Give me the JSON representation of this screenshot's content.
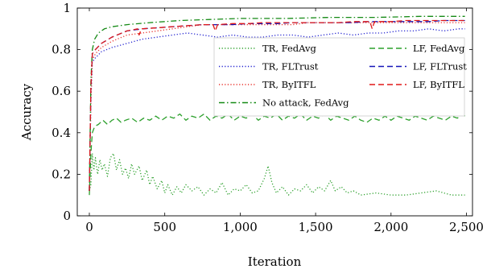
{
  "chart_data": {
    "type": "line",
    "xlabel": "Iteration",
    "ylabel": "Accuracy",
    "xlim": [
      -80,
      2540
    ],
    "ylim": [
      0,
      1
    ],
    "x_ticks": [
      0,
      500,
      1000,
      1500,
      2000,
      2500
    ],
    "x_tick_labels": [
      "0",
      "500",
      "1,000",
      "1,500",
      "2,000",
      "2,500"
    ],
    "y_ticks": [
      0,
      0.2,
      0.4,
      0.6,
      0.8,
      1
    ],
    "y_tick_labels": [
      "0",
      "0.2",
      "0.4",
      "0.6",
      "0.8",
      "1"
    ],
    "grid": false,
    "legend_position": "center-right",
    "series": [
      {
        "name": "TR, FedAvg",
        "color": "#2ca02c",
        "style": "dotted",
        "points": [
          [
            0,
            0.12
          ],
          [
            10,
            0.15
          ],
          [
            20,
            0.3
          ],
          [
            30,
            0.22
          ],
          [
            40,
            0.28
          ],
          [
            55,
            0.2
          ],
          [
            70,
            0.27
          ],
          [
            85,
            0.22
          ],
          [
            100,
            0.25
          ],
          [
            120,
            0.19
          ],
          [
            140,
            0.28
          ],
          [
            160,
            0.3
          ],
          [
            180,
            0.22
          ],
          [
            200,
            0.27
          ],
          [
            220,
            0.2
          ],
          [
            240,
            0.23
          ],
          [
            260,
            0.18
          ],
          [
            280,
            0.25
          ],
          [
            300,
            0.2
          ],
          [
            330,
            0.24
          ],
          [
            350,
            0.17
          ],
          [
            380,
            0.22
          ],
          [
            400,
            0.15
          ],
          [
            420,
            0.19
          ],
          [
            450,
            0.13
          ],
          [
            480,
            0.17
          ],
          [
            500,
            0.11
          ],
          [
            520,
            0.15
          ],
          [
            550,
            0.1
          ],
          [
            580,
            0.14
          ],
          [
            610,
            0.11
          ],
          [
            640,
            0.15
          ],
          [
            680,
            0.12
          ],
          [
            720,
            0.14
          ],
          [
            760,
            0.1
          ],
          [
            800,
            0.13
          ],
          [
            840,
            0.11
          ],
          [
            880,
            0.16
          ],
          [
            920,
            0.1
          ],
          [
            960,
            0.13
          ],
          [
            1000,
            0.12
          ],
          [
            1040,
            0.15
          ],
          [
            1080,
            0.11
          ],
          [
            1120,
            0.12
          ],
          [
            1160,
            0.18
          ],
          [
            1185,
            0.24
          ],
          [
            1210,
            0.16
          ],
          [
            1240,
            0.11
          ],
          [
            1280,
            0.14
          ],
          [
            1320,
            0.1
          ],
          [
            1360,
            0.13
          ],
          [
            1400,
            0.12
          ],
          [
            1440,
            0.15
          ],
          [
            1480,
            0.11
          ],
          [
            1520,
            0.14
          ],
          [
            1560,
            0.12
          ],
          [
            1600,
            0.17
          ],
          [
            1630,
            0.12
          ],
          [
            1670,
            0.14
          ],
          [
            1710,
            0.11
          ],
          [
            1750,
            0.12
          ],
          [
            1800,
            0.1
          ],
          [
            1900,
            0.11
          ],
          [
            2000,
            0.1
          ],
          [
            2100,
            0.1
          ],
          [
            2200,
            0.11
          ],
          [
            2300,
            0.12
          ],
          [
            2400,
            0.1
          ],
          [
            2490,
            0.1
          ]
        ]
      },
      {
        "name": "TR, FLTrust",
        "color": "#1f1fd0",
        "style": "dotted",
        "points": [
          [
            0,
            0.12
          ],
          [
            10,
            0.55
          ],
          [
            20,
            0.74
          ],
          [
            40,
            0.76
          ],
          [
            80,
            0.79
          ],
          [
            150,
            0.81
          ],
          [
            250,
            0.83
          ],
          [
            350,
            0.85
          ],
          [
            450,
            0.86
          ],
          [
            550,
            0.87
          ],
          [
            650,
            0.88
          ],
          [
            750,
            0.87
          ],
          [
            850,
            0.86
          ],
          [
            950,
            0.87
          ],
          [
            1050,
            0.86
          ],
          [
            1150,
            0.86
          ],
          [
            1250,
            0.87
          ],
          [
            1350,
            0.87
          ],
          [
            1450,
            0.86
          ],
          [
            1550,
            0.87
          ],
          [
            1650,
            0.88
          ],
          [
            1750,
            0.87
          ],
          [
            1850,
            0.88
          ],
          [
            1950,
            0.88
          ],
          [
            2050,
            0.89
          ],
          [
            2150,
            0.89
          ],
          [
            2250,
            0.9
          ],
          [
            2350,
            0.89
          ],
          [
            2450,
            0.9
          ],
          [
            2490,
            0.9
          ]
        ]
      },
      {
        "name": "TR, ByITFL",
        "color": "#e8302a",
        "style": "dotted",
        "points": [
          [
            0,
            0.12
          ],
          [
            10,
            0.55
          ],
          [
            20,
            0.75
          ],
          [
            40,
            0.78
          ],
          [
            80,
            0.81
          ],
          [
            150,
            0.84
          ],
          [
            250,
            0.87
          ],
          [
            350,
            0.88
          ],
          [
            450,
            0.89
          ],
          [
            550,
            0.9
          ],
          [
            650,
            0.91
          ],
          [
            750,
            0.92
          ],
          [
            850,
            0.92
          ],
          [
            950,
            0.92
          ],
          [
            1050,
            0.92
          ],
          [
            1150,
            0.92
          ],
          [
            1250,
            0.92
          ],
          [
            1350,
            0.92
          ],
          [
            1450,
            0.93
          ],
          [
            1550,
            0.93
          ],
          [
            1650,
            0.93
          ],
          [
            1750,
            0.93
          ],
          [
            1850,
            0.93
          ],
          [
            1950,
            0.93
          ],
          [
            2050,
            0.93
          ],
          [
            2150,
            0.93
          ],
          [
            2250,
            0.93
          ],
          [
            2350,
            0.93
          ],
          [
            2450,
            0.93
          ],
          [
            2490,
            0.93
          ]
        ]
      },
      {
        "name": "No attack, FedAvg",
        "color": "#158a15",
        "style": "dashdot",
        "points": [
          [
            0,
            0.12
          ],
          [
            10,
            0.65
          ],
          [
            20,
            0.8
          ],
          [
            35,
            0.85
          ],
          [
            60,
            0.88
          ],
          [
            100,
            0.9
          ],
          [
            150,
            0.91
          ],
          [
            250,
            0.92
          ],
          [
            400,
            0.93
          ],
          [
            600,
            0.94
          ],
          [
            800,
            0.945
          ],
          [
            1000,
            0.95
          ],
          [
            1300,
            0.95
          ],
          [
            1600,
            0.955
          ],
          [
            1900,
            0.955
          ],
          [
            2200,
            0.96
          ],
          [
            2490,
            0.96
          ]
        ]
      },
      {
        "name": "LF, FedAvg",
        "color": "#2ca02c",
        "style": "dashed",
        "points": [
          [
            0,
            0.1
          ],
          [
            10,
            0.3
          ],
          [
            20,
            0.4
          ],
          [
            35,
            0.43
          ],
          [
            60,
            0.44
          ],
          [
            90,
            0.46
          ],
          [
            120,
            0.44
          ],
          [
            150,
            0.46
          ],
          [
            180,
            0.47
          ],
          [
            210,
            0.45
          ],
          [
            240,
            0.46
          ],
          [
            280,
            0.47
          ],
          [
            320,
            0.45
          ],
          [
            360,
            0.47
          ],
          [
            400,
            0.46
          ],
          [
            440,
            0.48
          ],
          [
            480,
            0.46
          ],
          [
            520,
            0.48
          ],
          [
            560,
            0.47
          ],
          [
            600,
            0.49
          ],
          [
            640,
            0.46
          ],
          [
            680,
            0.48
          ],
          [
            720,
            0.47
          ],
          [
            760,
            0.49
          ],
          [
            800,
            0.46
          ],
          [
            840,
            0.48
          ],
          [
            880,
            0.47
          ],
          [
            920,
            0.49
          ],
          [
            960,
            0.46
          ],
          [
            1000,
            0.48
          ],
          [
            1040,
            0.47
          ],
          [
            1080,
            0.49
          ],
          [
            1120,
            0.46
          ],
          [
            1160,
            0.48
          ],
          [
            1200,
            0.47
          ],
          [
            1240,
            0.49
          ],
          [
            1280,
            0.46
          ],
          [
            1320,
            0.48
          ],
          [
            1360,
            0.47
          ],
          [
            1400,
            0.49
          ],
          [
            1440,
            0.46
          ],
          [
            1480,
            0.48
          ],
          [
            1520,
            0.47
          ],
          [
            1560,
            0.49
          ],
          [
            1600,
            0.46
          ],
          [
            1640,
            0.48
          ],
          [
            1680,
            0.47
          ],
          [
            1720,
            0.46
          ],
          [
            1760,
            0.48
          ],
          [
            1800,
            0.46
          ],
          [
            1840,
            0.45
          ],
          [
            1880,
            0.47
          ],
          [
            1920,
            0.46
          ],
          [
            1960,
            0.48
          ],
          [
            2000,
            0.46
          ],
          [
            2040,
            0.48
          ],
          [
            2080,
            0.47
          ],
          [
            2120,
            0.46
          ],
          [
            2160,
            0.48
          ],
          [
            2200,
            0.47
          ],
          [
            2240,
            0.46
          ],
          [
            2280,
            0.48
          ],
          [
            2320,
            0.47
          ],
          [
            2360,
            0.46
          ],
          [
            2400,
            0.48
          ],
          [
            2440,
            0.47
          ],
          [
            2470,
            0.49
          ],
          [
            2490,
            0.48
          ]
        ]
      },
      {
        "name": "LF, FLTrust",
        "color": "#1515b8",
        "style": "dashed",
        "points": [
          [
            0,
            0.12
          ],
          [
            10,
            0.6
          ],
          [
            20,
            0.78
          ],
          [
            40,
            0.8
          ],
          [
            80,
            0.83
          ],
          [
            150,
            0.86
          ],
          [
            250,
            0.89
          ],
          [
            350,
            0.9
          ],
          [
            450,
            0.905
          ],
          [
            550,
            0.91
          ],
          [
            650,
            0.915
          ],
          [
            750,
            0.92
          ],
          [
            850,
            0.92
          ],
          [
            950,
            0.92
          ],
          [
            1050,
            0.925
          ],
          [
            1150,
            0.925
          ],
          [
            1250,
            0.925
          ],
          [
            1350,
            0.93
          ],
          [
            1450,
            0.93
          ],
          [
            1550,
            0.93
          ],
          [
            1650,
            0.93
          ],
          [
            1750,
            0.93
          ],
          [
            1850,
            0.935
          ],
          [
            1950,
            0.935
          ],
          [
            2050,
            0.935
          ],
          [
            2150,
            0.935
          ],
          [
            2250,
            0.935
          ],
          [
            2350,
            0.94
          ],
          [
            2450,
            0.94
          ],
          [
            2490,
            0.94
          ]
        ]
      },
      {
        "name": "LF, ByITFL",
        "color": "#e01818",
        "style": "dashed",
        "points": [
          [
            0,
            0.12
          ],
          [
            10,
            0.62
          ],
          [
            20,
            0.78
          ],
          [
            40,
            0.8
          ],
          [
            80,
            0.83
          ],
          [
            150,
            0.86
          ],
          [
            250,
            0.89
          ],
          [
            320,
            0.9
          ],
          [
            330,
            0.87
          ],
          [
            345,
            0.9
          ],
          [
            450,
            0.905
          ],
          [
            550,
            0.91
          ],
          [
            650,
            0.915
          ],
          [
            750,
            0.92
          ],
          [
            820,
            0.92
          ],
          [
            835,
            0.89
          ],
          [
            850,
            0.92
          ],
          [
            950,
            0.925
          ],
          [
            1050,
            0.925
          ],
          [
            1150,
            0.93
          ],
          [
            1250,
            0.93
          ],
          [
            1350,
            0.93
          ],
          [
            1450,
            0.93
          ],
          [
            1550,
            0.93
          ],
          [
            1650,
            0.93
          ],
          [
            1750,
            0.935
          ],
          [
            1860,
            0.935
          ],
          [
            1875,
            0.9
          ],
          [
            1890,
            0.935
          ],
          [
            2000,
            0.935
          ],
          [
            2100,
            0.94
          ],
          [
            2200,
            0.94
          ],
          [
            2300,
            0.94
          ],
          [
            2400,
            0.94
          ],
          [
            2490,
            0.94
          ]
        ]
      }
    ]
  }
}
